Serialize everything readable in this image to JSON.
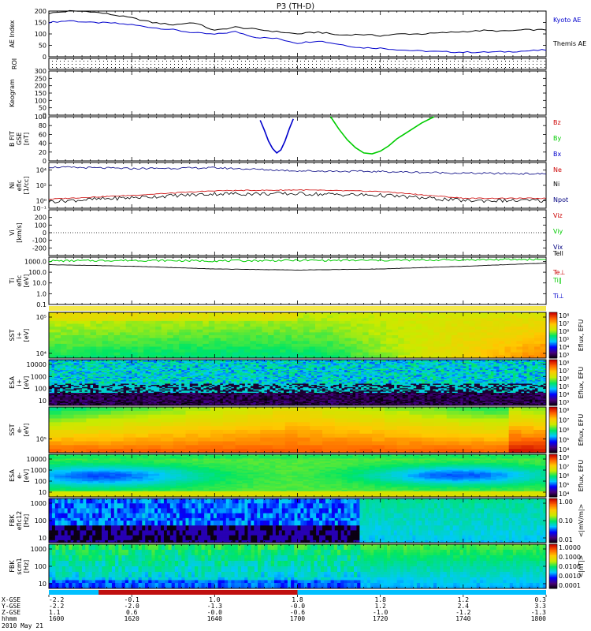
{
  "title": "P3 (TH-D)",
  "date_label": "2010 May 21",
  "colors": {
    "kyoto": "#0000cc",
    "themis": "#000000",
    "bz": "#cc0000",
    "by": "#00cc00",
    "bx": "#0000cc",
    "ne": "#cc0000",
    "ni": "#000000",
    "npot": "#000080",
    "te": "#cc0000",
    "ti": "#00cc00",
    "tperp": "#0000cc"
  },
  "orbit_labels": {
    "rows": [
      "X-GSE",
      "Y-GSE",
      "Z-GSE",
      "hhmm",
      ""
    ],
    "columns": [
      [
        "-2.2",
        "-2.2",
        "1.1",
        "1600"
      ],
      [
        "-0.1",
        "-2.0",
        "0.6",
        "1620"
      ],
      [
        "1.0",
        "-1.3",
        "-0.0",
        "1640"
      ],
      [
        "1.8",
        "-0.0",
        "-0.6",
        "1700"
      ],
      [
        "1.8",
        "1.2",
        "-1.0",
        "1720"
      ],
      [
        "1.2",
        "2.4",
        "-1.2",
        "1740"
      ],
      [
        "0.3",
        "3.3",
        "-1.3",
        "1800"
      ]
    ]
  },
  "chart_data": [
    {
      "type": "line",
      "name": "ae-index",
      "ylabel": "AE Index",
      "ylim": [
        0,
        200
      ],
      "yticks": [
        "0",
        "50",
        "100",
        "150",
        "200"
      ],
      "x": [
        1600,
        1605,
        1610,
        1615,
        1620,
        1625,
        1630,
        1635,
        1640,
        1645,
        1650,
        1655,
        1700,
        1705,
        1710,
        1715,
        1720,
        1725,
        1730,
        1735,
        1740,
        1745,
        1750,
        1755,
        1800
      ],
      "series": [
        {
          "name": "Kyoto AE",
          "color_key": "kyoto",
          "values": [
            150,
            158,
            150,
            148,
            140,
            128,
            118,
            105,
            98,
            110,
            85,
            80,
            60,
            70,
            55,
            40,
            38,
            30,
            25,
            22,
            20,
            20,
            22,
            25,
            30
          ]
        },
        {
          "name": "Themis AE",
          "color_key": "themis",
          "values": [
            190,
            200,
            198,
            185,
            170,
            150,
            140,
            150,
            115,
            130,
            120,
            110,
            100,
            108,
            95,
            98,
            92,
            100,
            100,
            105,
            110,
            115,
            112,
            118,
            118
          ]
        }
      ]
    },
    {
      "type": "table",
      "name": "roi",
      "ylabel": "ROI"
    },
    {
      "type": "line",
      "name": "keogram",
      "ylabel": "Keogram",
      "ylim": [
        0,
        300
      ],
      "yticks": [
        "0",
        "50",
        "100",
        "150",
        "200",
        "250",
        "300"
      ]
    },
    {
      "type": "line",
      "name": "b-fit",
      "ylabel": "B FIT\nGSE\n[nT]",
      "ylim": [
        0,
        100
      ],
      "yticks": [
        "0",
        "20",
        "40",
        "60",
        "80",
        "100"
      ],
      "series": [
        {
          "name": "Bz",
          "color_key": "bz",
          "x": [],
          "values": []
        },
        {
          "name": "By",
          "color_key": "by",
          "x": [
            1708,
            1710,
            1712,
            1714,
            1716,
            1718,
            1720,
            1722,
            1724,
            1727,
            1730,
            1733
          ],
          "values": [
            100,
            72,
            48,
            30,
            18,
            16,
            22,
            34,
            50,
            68,
            86,
            100
          ]
        },
        {
          "name": "Bx",
          "color_key": "bx",
          "x": [
            1651,
            1652,
            1653,
            1654,
            1655,
            1656,
            1657,
            1658,
            1659
          ],
          "values": [
            92,
            70,
            45,
            28,
            18,
            25,
            45,
            72,
            95
          ]
        }
      ]
    },
    {
      "type": "line",
      "name": "density",
      "ylabel": "Ni\nefic\n[1/cc]",
      "ylim": [
        -1,
        5
      ],
      "ylog": true,
      "yticks": [
        "10⁻¹",
        "10⁰",
        "10²",
        "10⁴"
      ],
      "x": [
        1600,
        1620,
        1640,
        1700,
        1720,
        1740,
        1800
      ],
      "series": [
        {
          "name": "Ne",
          "color_key": "ne",
          "values": [
            0.2,
            0.7,
            1.3,
            1.4,
            1.2,
            0.3,
            0.3
          ]
        },
        {
          "name": "Ni",
          "color_key": "ni",
          "values": [
            -0.1,
            0.4,
            0.9,
            0.9,
            0.7,
            0.0,
            0.0
          ]
        },
        {
          "name": "Npot",
          "color_key": "npot",
          "values": [
            4.4,
            4.2,
            4.3,
            3.9,
            3.8,
            3.6,
            3.5
          ]
        }
      ]
    },
    {
      "type": "line",
      "name": "velocity",
      "ylabel": "Vi\n[km/s]",
      "ylim": [
        -300,
        300
      ],
      "yticks": [
        "-200",
        "-100",
        "0",
        "100",
        "200"
      ],
      "series": [
        {
          "name": "Viz",
          "color_key": "ne"
        },
        {
          "name": "Viy",
          "color_key": "by"
        },
        {
          "name": "Vix",
          "color_key": "npot"
        }
      ]
    },
    {
      "type": "line",
      "name": "temperature",
      "ylabel": "Ti\nefic\n[eV]",
      "ylim": [
        -1,
        3.4
      ],
      "ylog": true,
      "yticks": [
        "0.1",
        "1.0",
        "10.0",
        "100.0",
        "1000.0"
      ],
      "x": [
        1600,
        1620,
        1640,
        1700,
        1720,
        1740,
        1800
      ],
      "legend": [
        "Tell",
        "Te⊥",
        "Ti∥",
        "Ti⊥"
      ],
      "series": [
        {
          "name": "Ti∥",
          "color_key": "ti",
          "values": [
            3.05,
            3.1,
            3.05,
            3.1,
            3.1,
            3.15,
            3.2
          ]
        },
        {
          "name": "Te⊥",
          "color_key": "themis",
          "values": [
            2.7,
            2.55,
            2.3,
            2.2,
            2.3,
            2.55,
            2.85
          ]
        }
      ]
    },
    {
      "type": "heatmap",
      "name": "sst-ion",
      "ylabel": "SST\ni+\n[eV]",
      "yticks": [
        "10⁴",
        "10⁵"
      ],
      "colorbar": "Eflux, EFU",
      "cbticks": [
        "10⁸",
        "10⁷",
        "10⁶",
        "10⁵",
        "10⁴",
        "10³"
      ]
    },
    {
      "type": "heatmap",
      "name": "esa-ion",
      "ylabel": "ESA\ni+\n[eV]",
      "yticks": [
        "10",
        "100",
        "1000",
        "10000"
      ],
      "colorbar": "Eflux, EFU",
      "cbticks": [
        "10⁸",
        "10⁷",
        "10⁶",
        "10⁵",
        "10⁴",
        "10³"
      ]
    },
    {
      "type": "heatmap",
      "name": "sst-elec",
      "ylabel": "SST\ne-\n[eV]",
      "yticks": [
        "10⁵"
      ],
      "colorbar": "Eflux, EFU",
      "cbticks": [
        "10⁸",
        "10⁷",
        "10⁶",
        "10⁵",
        "10⁴"
      ]
    },
    {
      "type": "heatmap",
      "name": "esa-elec",
      "ylabel": "ESA\ne-\n[eV]",
      "yticks": [
        "10",
        "100",
        "1000",
        "10000"
      ],
      "colorbar": "Eflux, EFU",
      "cbticks": [
        "10⁸",
        "10⁷",
        "10⁶",
        "10⁵",
        "10⁴"
      ]
    },
    {
      "type": "heatmap",
      "name": "fbk-e",
      "ylabel": "FBK\nefic12\n[Hz]",
      "yticks": [
        "10",
        "100",
        "1000"
      ],
      "colorbar": "<|mV/m|>",
      "cbticks": [
        "1.00",
        "0.10",
        "0.01"
      ]
    },
    {
      "type": "heatmap",
      "name": "fbk-b",
      "ylabel": "FBK\nscm1\n[Hz]",
      "yticks": [
        "10",
        "100",
        "1000"
      ],
      "colorbar": "<|nT|>",
      "cbticks": [
        "1.0000",
        "0.1000",
        "0.0100",
        "0.0010",
        "0.0001"
      ]
    }
  ]
}
